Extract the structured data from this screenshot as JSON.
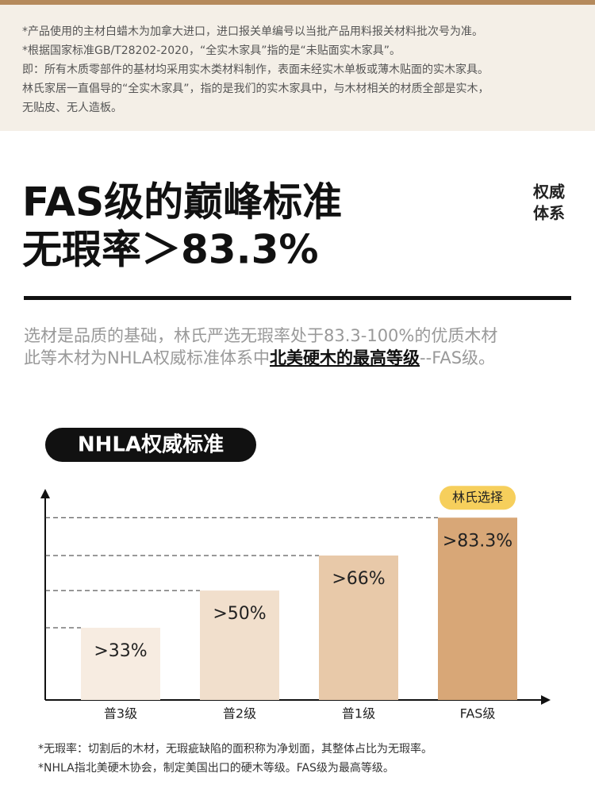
{
  "notes": [
    "*产品使用的主材白蜡木为加拿大进口，进口报关单编号以当批产品用料报关材料批次号为准。",
    "*根据国家标准GB/T28202-2020，“全实木家具”指的是“未贴面实木家具”。",
    "即：所有木质零部件的基材均采用实木类材料制作，表面未经实木单板或薄木贴面的实木家具。",
    "林氏家居一直倡导的“全实木家具”，指的是我们的实木家具中，与木材相关的材质全部是实木，",
    "无贴皮、无人造板。"
  ],
  "headline": {
    "line1": "FAS级的巅峰标准",
    "line2": "无瑕率＞83.3%",
    "side": [
      "权威",
      "体系"
    ]
  },
  "paragraph": {
    "line1": "选材是品质的基础，林氏严选无瑕率处于83.3-100%的优质木材",
    "line2_before": "此等木材为NHLA权威标准体系中",
    "line2_emphasis": "北美硬木的最高等级",
    "line2_after": "--FAS级。"
  },
  "chart_data": {
    "type": "bar",
    "title": "NHLA权威标准",
    "categories": [
      "普3级",
      "普2级",
      "普1级",
      "FAS级"
    ],
    "values": [
      33,
      50,
      66,
      83.3
    ],
    "value_labels": [
      ">33%",
      ">50%",
      ">66%",
      ">83.3%"
    ],
    "colors": [
      "#f7ece1",
      "#f1dfcc",
      "#e8c9a9",
      "#d8a777"
    ],
    "ylim": [
      0,
      95
    ],
    "annotation": "林氏选择"
  },
  "footnotes": [
    "*无瑕率：切割后的木材，无瑕疵缺陷的面积称为净划面，其整体占比为无瑕率。",
    "*NHLA指北美硬木协会，制定美国出口的硬木等级。FAS级为最高等级。"
  ]
}
